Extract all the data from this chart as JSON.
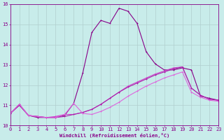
{
  "xlabel": "Windchill (Refroidissement éolien,°C)",
  "xlim": [
    0,
    23
  ],
  "ylim": [
    10,
    16
  ],
  "background_color": "#c8ecea",
  "grid_color": "#b0cece",
  "axis_color": "#880088",
  "tick_color": "#880088",
  "x_ticks": [
    0,
    1,
    2,
    3,
    4,
    5,
    6,
    7,
    8,
    9,
    10,
    11,
    12,
    13,
    14,
    15,
    16,
    17,
    18,
    19,
    20,
    21,
    22,
    23
  ],
  "y_ticks": [
    10,
    11,
    12,
    13,
    14,
    15,
    16
  ],
  "lines": [
    {
      "x": [
        0,
        1,
        2,
        3,
        4,
        5,
        6,
        7,
        8,
        9,
        10,
        11,
        12,
        13,
        14,
        15,
        16,
        17,
        18,
        19,
        20,
        21,
        22,
        23
      ],
      "y": [
        10.6,
        11.0,
        10.5,
        10.4,
        10.4,
        10.4,
        10.5,
        11.1,
        12.6,
        14.6,
        15.2,
        15.05,
        15.8,
        15.65,
        15.05,
        13.65,
        13.05,
        12.75,
        12.75,
        12.85,
        12.75,
        11.45,
        11.35,
        11.25
      ],
      "color": "#880088",
      "lw": 0.8,
      "marker": "+"
    },
    {
      "x": [
        0,
        1,
        2,
        3,
        4,
        5,
        6,
        7,
        8,
        9,
        10,
        11,
        12,
        13,
        14,
        15,
        16,
        17,
        18,
        19,
        20,
        21,
        22,
        23
      ],
      "y": [
        10.6,
        11.05,
        10.5,
        10.45,
        10.4,
        10.45,
        10.55,
        10.55,
        10.65,
        10.8,
        11.05,
        11.35,
        11.65,
        11.95,
        12.15,
        12.35,
        12.55,
        12.7,
        12.85,
        12.9,
        11.85,
        11.5,
        11.3,
        11.25
      ],
      "color": "#cc44cc",
      "lw": 0.8,
      "marker": "+"
    },
    {
      "x": [
        0,
        1,
        2,
        3,
        4,
        5,
        6,
        7,
        8,
        9,
        10,
        11,
        12,
        13,
        14,
        15,
        16,
        17,
        18,
        19,
        20,
        21,
        22,
        23
      ],
      "y": [
        10.6,
        11.05,
        10.5,
        10.45,
        10.4,
        10.4,
        10.45,
        10.55,
        10.65,
        10.8,
        11.05,
        11.35,
        11.65,
        11.9,
        12.1,
        12.3,
        12.5,
        12.65,
        12.8,
        12.9,
        11.85,
        11.5,
        11.3,
        11.25
      ],
      "color": "#aa22aa",
      "lw": 0.8,
      "marker": "+"
    },
    {
      "x": [
        0,
        1,
        2,
        3,
        4,
        5,
        6,
        7,
        8,
        9,
        10,
        11,
        12,
        13,
        14,
        15,
        16,
        17,
        18,
        19,
        20,
        21,
        22,
        23
      ],
      "y": [
        10.6,
        11.05,
        10.5,
        10.45,
        10.4,
        10.4,
        10.55,
        11.1,
        10.6,
        10.55,
        10.7,
        10.9,
        11.15,
        11.45,
        11.7,
        11.95,
        12.15,
        12.35,
        12.5,
        12.65,
        11.65,
        11.4,
        11.25,
        11.2
      ],
      "color": "#dd66dd",
      "lw": 0.8,
      "marker": "+"
    }
  ],
  "label_fontsize": 5.0,
  "tick_fontsize": 5.0
}
